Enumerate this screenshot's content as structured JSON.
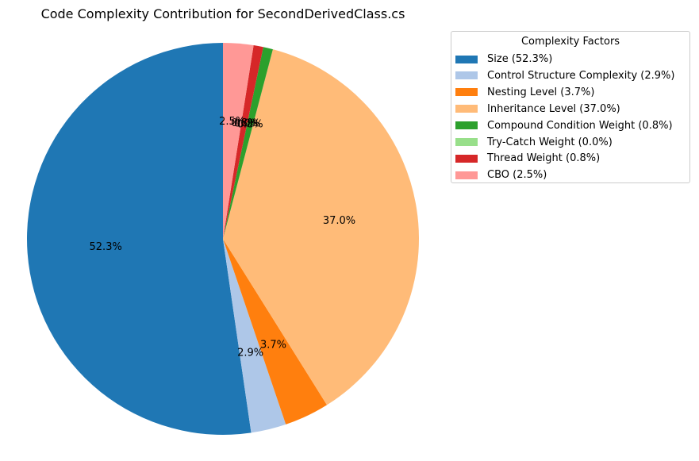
{
  "chart_data": {
    "type": "pie",
    "title": "Code Complexity Contribution for SecondDerivedClass.cs",
    "start_angle_deg": 90,
    "direction": "counterclockwise",
    "slices": [
      {
        "label": "Size",
        "value": 52.3,
        "pct_label": "52.3%",
        "color": "#1f77b4"
      },
      {
        "label": "Control Structure Complexity",
        "value": 2.9,
        "pct_label": "2.9%",
        "color": "#aec7e8"
      },
      {
        "label": "Nesting Level",
        "value": 3.7,
        "pct_label": "3.7%",
        "color": "#ff7f0e"
      },
      {
        "label": "Inheritance Level",
        "value": 37.0,
        "pct_label": "37.0%",
        "color": "#ffbb78"
      },
      {
        "label": "Compound Condition Weight",
        "value": 0.8,
        "pct_label": "0.8%",
        "color": "#2ca02c"
      },
      {
        "label": "Try-Catch Weight",
        "value": 0.0,
        "pct_label": "0.0%",
        "color": "#98df8a"
      },
      {
        "label": "Thread Weight",
        "value": 0.8,
        "pct_label": "0.8%",
        "color": "#d62728"
      },
      {
        "label": "CBO",
        "value": 2.5,
        "pct_label": "2.5%",
        "color": "#ff9896"
      }
    ],
    "legend": {
      "title": "Complexity Factors",
      "placement": "top-right",
      "entries": [
        "Size (52.3%)",
        "Control Structure Complexity (2.9%)",
        "Nesting Level (3.7%)",
        "Inheritance Level (37.0%)",
        "Compound Condition Weight (0.8%)",
        "Try-Catch Weight (0.0%)",
        "Thread Weight (0.8%)",
        "CBO (2.5%)"
      ]
    }
  }
}
